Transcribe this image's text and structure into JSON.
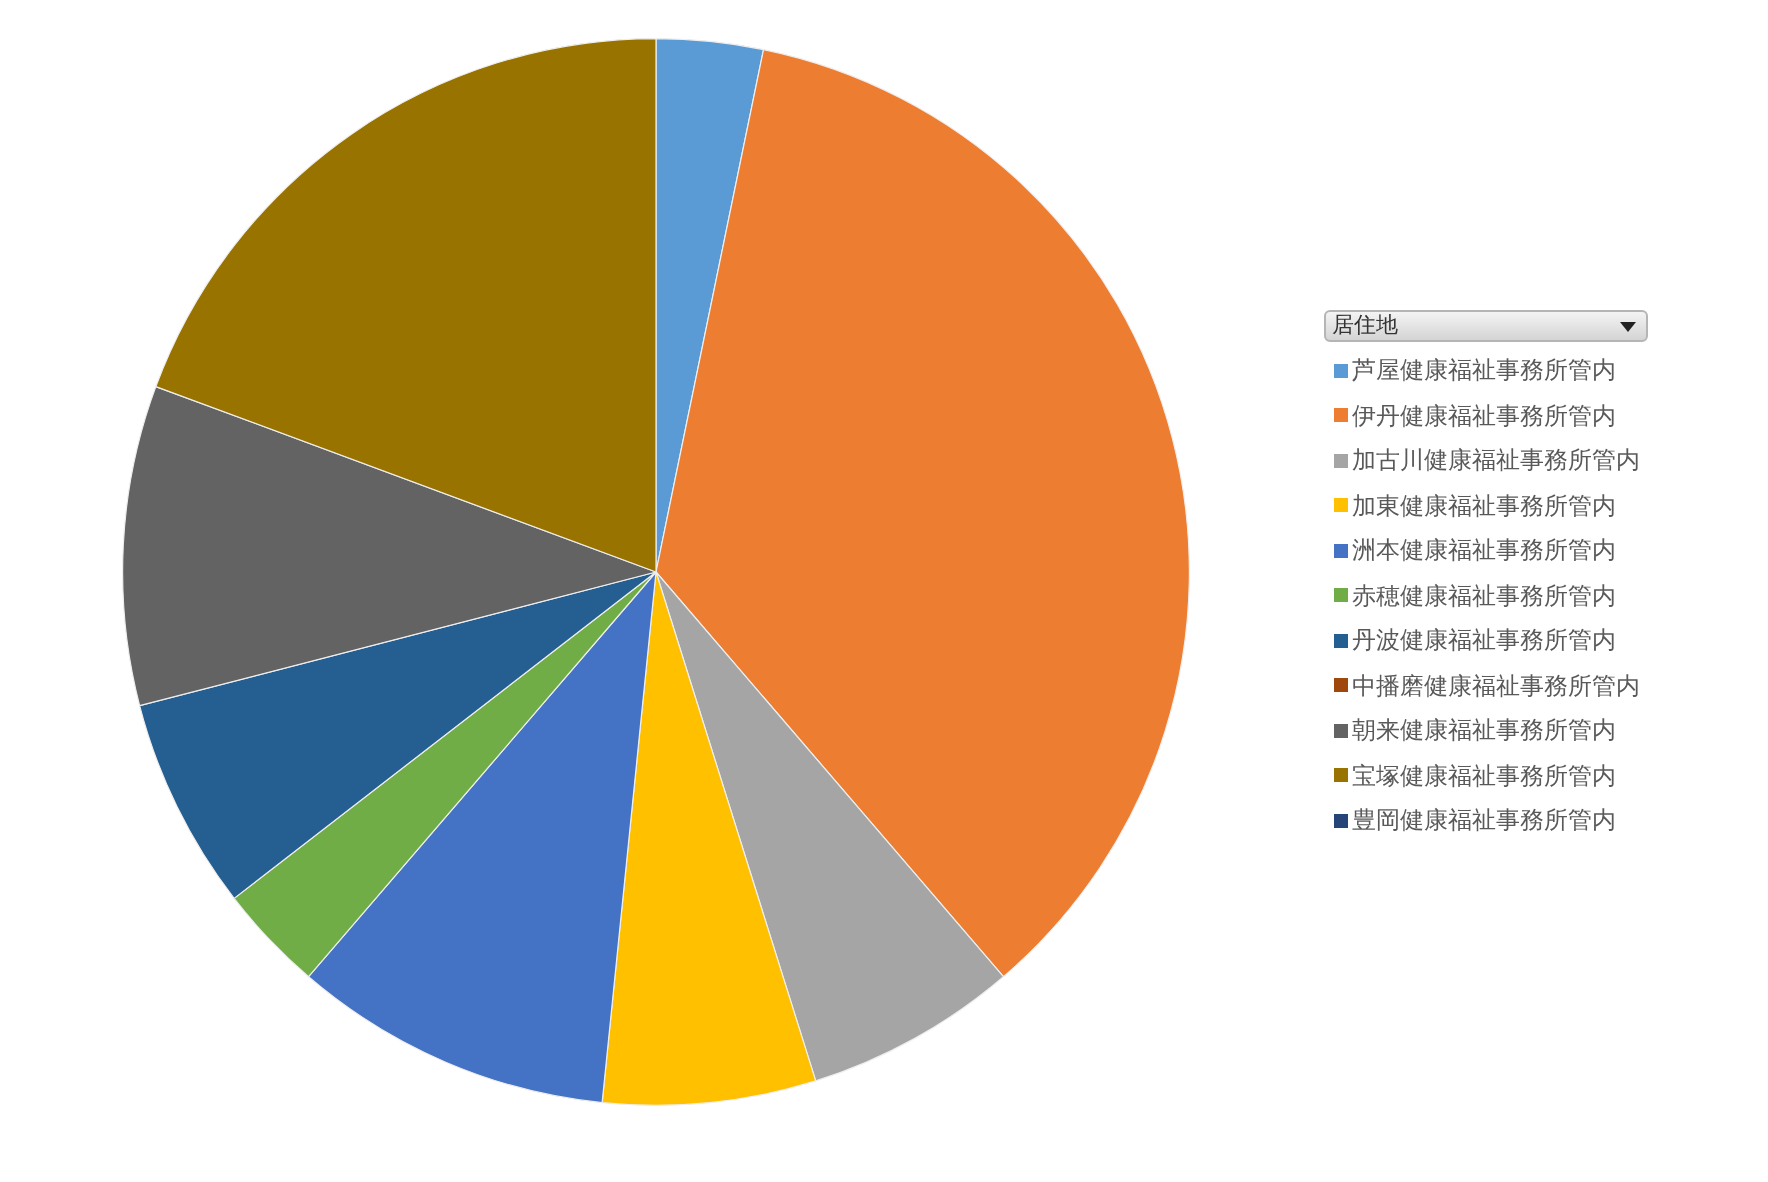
{
  "chart_data": {
    "type": "pie",
    "legend_title": "居住地",
    "legend": "right",
    "categories": [
      "芦屋健康福祉事務所管内",
      "伊丹健康福祉事務所管内",
      "加古川健康福祉事務所管内",
      "加東健康福祉事務所管内",
      "洲本健康福祉事務所管内",
      "赤穂健康福祉事務所管内",
      "丹波健康福祉事務所管内",
      "中播磨健康福祉事務所管内",
      "朝来健康福祉事務所管内",
      "宝塚健康福祉事務所管内",
      "豊岡健康福祉事務所管内"
    ],
    "values": [
      3.23,
      35.48,
      6.45,
      6.45,
      9.68,
      3.23,
      6.45,
      0,
      9.68,
      19.35,
      0
    ],
    "colors": [
      "#5b9bd5",
      "#ed7d31",
      "#a5a5a5",
      "#ffc000",
      "#4472c4",
      "#70ad47",
      "#255e91",
      "#9e480e",
      "#636363",
      "#997300",
      "#264478"
    ]
  }
}
